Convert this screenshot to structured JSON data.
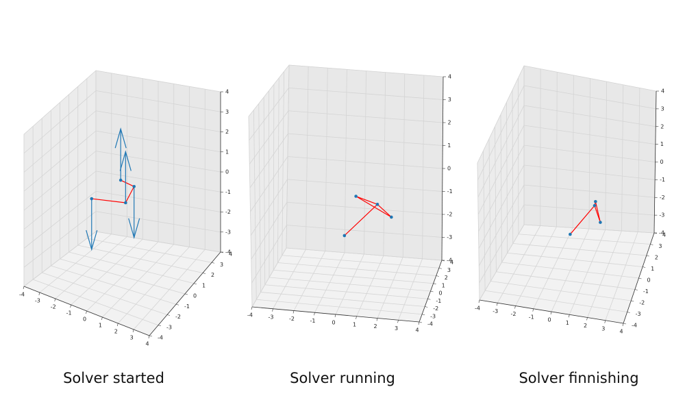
{
  "chart_data": [
    {
      "type": "3d-line-scatter",
      "caption": "Solver started",
      "axes": {
        "xlim": [
          -4,
          4
        ],
        "ylim": [
          -4,
          4
        ],
        "zlim": [
          -4,
          4
        ],
        "xticks": [
          "-4",
          "-3",
          "-2",
          "-1",
          "0",
          "1",
          "2",
          "3",
          "4"
        ],
        "yticks": [
          "-4",
          "-3",
          "-2",
          "-1",
          "0",
          "1",
          "2",
          "3",
          "4"
        ],
        "zticks": [
          "-4",
          "-3",
          "-2",
          "-1",
          "0",
          "1",
          "2",
          "3",
          "4"
        ],
        "grid": true
      },
      "points": [
        {
          "x": -1.8,
          "y": -0.3,
          "z": -0.3
        },
        {
          "x": -0.2,
          "y": 0.7,
          "z": -0.6
        },
        {
          "x": 0.4,
          "y": 0.6,
          "z": 0.4
        },
        {
          "x": -0.8,
          "y": 1.2,
          "z": 0.2
        }
      ],
      "links": [
        [
          0,
          1
        ],
        [
          1,
          2
        ],
        [
          2,
          3
        ]
      ],
      "arrows": [
        {
          "from": 0,
          "dz": -2.6
        },
        {
          "from": 1,
          "dz": 2.6
        },
        {
          "from": 2,
          "dz": -2.6
        },
        {
          "from": 3,
          "dz": 2.6
        }
      ],
      "colors": {
        "point": "#1f77b4",
        "link": "#ff0000",
        "arrow": "#1f77b4"
      }
    },
    {
      "type": "3d-line-scatter",
      "caption": "Solver running",
      "axes": {
        "xlim": [
          -4,
          4
        ],
        "ylim": [
          -4,
          4
        ],
        "zlim": [
          -4,
          4
        ],
        "xticks": [
          "-4",
          "-3",
          "-2",
          "-1",
          "0",
          "1",
          "2",
          "3",
          "4"
        ],
        "yticks": [
          "-4",
          "-3",
          "-2",
          "-1",
          "0",
          "1",
          "2",
          "3",
          "4"
        ],
        "zticks": [
          "-4",
          "-3",
          "-2",
          "-1",
          "0",
          "1",
          "2",
          "3",
          "4"
        ],
        "grid": true
      },
      "points": [
        {
          "x": -0.3,
          "y": 0.2,
          "z": -2.0
        },
        {
          "x": 1.2,
          "y": 1.0,
          "z": -0.8
        },
        {
          "x": 0.2,
          "y": 0.6,
          "z": -0.4
        },
        {
          "x": 1.9,
          "y": 1.0,
          "z": -1.3
        }
      ],
      "links": [
        [
          0,
          1
        ],
        [
          1,
          3
        ],
        [
          3,
          2
        ],
        [
          2,
          1
        ]
      ],
      "arrows": [],
      "colors": {
        "point": "#1f77b4",
        "link": "#ff0000",
        "arrow": "#1f77b4"
      }
    },
    {
      "type": "3d-line-scatter",
      "caption": "Solver finnishing",
      "axes": {
        "xlim": [
          -4,
          4
        ],
        "ylim": [
          -4,
          4
        ],
        "zlim": [
          -4,
          4
        ],
        "xticks": [
          "-4",
          "-3",
          "-2",
          "-1",
          "0",
          "1",
          "2",
          "3",
          "4"
        ],
        "yticks": [
          "-4",
          "-3",
          "-2",
          "-1",
          "0",
          "1",
          "2",
          "3",
          "4"
        ],
        "zticks": [
          "-4",
          "-3",
          "-2",
          "-1",
          "0",
          "1",
          "2",
          "3",
          "4"
        ],
        "grid": true
      },
      "points": [
        {
          "x": 0.0,
          "y": 0.0,
          "z": -2.0
        },
        {
          "x": 1.1,
          "y": 1.2,
          "z": -1.0
        },
        {
          "x": 1.6,
          "y": 0.6,
          "z": -1.5
        },
        {
          "x": 1.1,
          "y": 1.4,
          "z": -0.9
        }
      ],
      "links": [
        [
          0,
          1
        ],
        [
          1,
          2
        ],
        [
          2,
          3
        ],
        [
          3,
          1
        ]
      ],
      "arrows": [],
      "colors": {
        "point": "#1f77b4",
        "link": "#ff0000",
        "arrow": "#1f77b4"
      }
    }
  ]
}
